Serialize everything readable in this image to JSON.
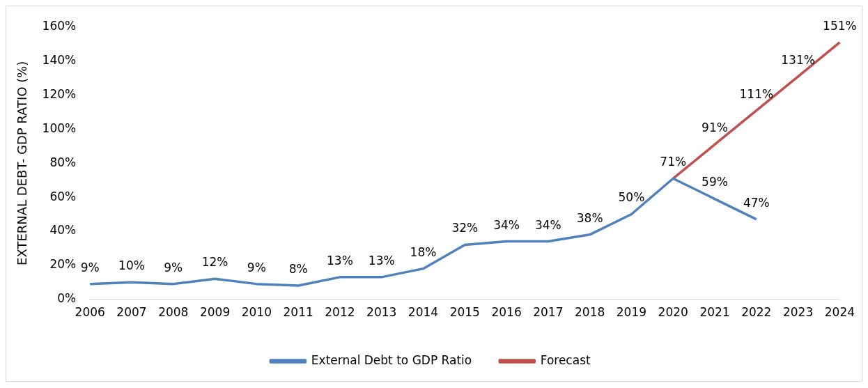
{
  "chart_data": {
    "type": "line",
    "ylabel": "EXTERNAL DEBT- GDP RATIO (%)",
    "categories": [
      "2006",
      "2007",
      "2008",
      "2009",
      "2010",
      "2011",
      "2012",
      "2013",
      "2014",
      "2015",
      "2016",
      "2017",
      "2018",
      "2019",
      "2020",
      "2021",
      "2022",
      "2023",
      "2024"
    ],
    "series": [
      {
        "name": "External Debt to GDP Ratio",
        "color": "#4f81bd",
        "values": [
          9,
          10,
          9,
          12,
          9,
          8,
          13,
          13,
          18,
          32,
          34,
          34,
          38,
          50,
          71,
          59,
          47,
          null,
          null
        ],
        "value_labels": [
          "9%",
          "10%",
          "9%",
          "12%",
          "9%",
          "8%",
          "13%",
          "13%",
          "18%",
          "32%",
          "34%",
          "34%",
          "38%",
          "50%",
          "71%",
          "59%",
          "47%",
          null,
          null
        ]
      },
      {
        "name": "Forecast",
        "color": "#c0504d",
        "values": [
          null,
          null,
          null,
          null,
          null,
          null,
          null,
          null,
          null,
          null,
          null,
          null,
          null,
          null,
          71,
          91,
          111,
          131,
          151
        ],
        "value_labels": [
          null,
          null,
          null,
          null,
          null,
          null,
          null,
          null,
          null,
          null,
          null,
          null,
          null,
          null,
          null,
          "91%",
          "111%",
          "131%",
          "151%"
        ]
      }
    ],
    "ylim": [
      0,
      160
    ],
    "yticks": [
      {
        "value": 0,
        "label": "0%"
      },
      {
        "value": 20,
        "label": "20%"
      },
      {
        "value": 40,
        "label": "40%"
      },
      {
        "value": 60,
        "label": "60%"
      },
      {
        "value": 80,
        "label": "80%"
      },
      {
        "value": 100,
        "label": "100%"
      },
      {
        "value": 120,
        "label": "120%"
      },
      {
        "value": 140,
        "label": "140%"
      },
      {
        "value": 160,
        "label": "160%"
      }
    ],
    "grid": false,
    "legend": "bottom",
    "marker": "none",
    "line_style": "solid"
  }
}
